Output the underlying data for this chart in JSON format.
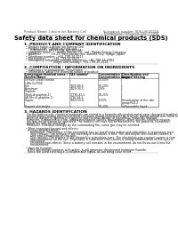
{
  "bg_color": "#ffffff",
  "header_left": "Product Name: Lithium Ion Battery Cell",
  "header_right_line1": "Substance number: SDS-LIB-00018",
  "header_right_line2": "Established / Revision: Dec.7.2016",
  "title": "Safety data sheet for chemical products (SDS)",
  "section1_title": "1. PRODUCT AND COMPANY IDENTIFICATION",
  "section1_lines": [
    "  • Product name: Lithium Ion Battery Cell",
    "  • Product code: Cylindrical-type cell",
    "       (UR18650U, UR18650A, UR18650A)",
    "  • Company name:      Sanyo Electric Co., Ltd., Mobile Energy Company",
    "  • Address:            20-21, Kamiyanagi-cho, Sumoto-City, Hyogo, Japan",
    "  • Telephone number:  +81-799-26-4111",
    "  • Fax number:        +81-799-26-4123",
    "  • Emergency telephone number (daytime): +81-799-26-2962",
    "                                 (Night and holiday): +81-799-26-2101"
  ],
  "section2_title": "2. COMPOSITION / INFORMATION ON INGREDIENTS",
  "section2_sub": "  • Substance or preparation: Preparation",
  "section2_sub2": "  • Information about the chemical nature of product:",
  "table_headers": [
    "Component chemical name /",
    "CAS number",
    "Concentration /",
    "Classification and"
  ],
  "table_headers2": [
    "Several Name",
    "",
    "Concentration range",
    "hazard labeling"
  ],
  "table_rows": [
    [
      "Lithium cobalt tentate",
      "-",
      "30-60%",
      ""
    ],
    [
      "(LiMn-Co-PO4)",
      "",
      "",
      ""
    ],
    [
      "Iron",
      "7439-89-6",
      "10-20%",
      "-"
    ],
    [
      "Aluminum",
      "7429-90-5",
      "2-6%",
      "-"
    ],
    [
      "Graphite",
      "",
      "",
      ""
    ],
    [
      "(Rock-A graphite-1)",
      "77782-42-5",
      "10-25%",
      "-"
    ],
    [
      "(Al-Mn-co graphite-1)",
      "7782-44-2",
      "",
      ""
    ],
    [
      "Copper",
      "7440-50-8",
      "5-15%",
      "Sensitization of the skin"
    ],
    [
      "",
      "",
      "",
      "group R43.2"
    ],
    [
      "Organic electrolyte",
      "-",
      "10-20%",
      "Inflammable liquid"
    ]
  ],
  "section3_title": "3. HAZARDS IDENTIFICATION",
  "section3_text": [
    "   For the battery cell, chemical materials are stored in a hermetically sealed metal case, designed to withstand",
    "   temperatures during electro-chemical reactions during normal use. As a result, during normal use, there is no",
    "   physical danger of ignition or explosion and thermal-danger of hazardous materials leakage.",
    "   However, if exposed to a fire, added mechanical shocks, decompress, when electric shock or misuse,",
    "   the gas inside cannot be operated. The battery cell case will be breached or fire-patterns, hazardous",
    "   materials may be released.",
    "   Moreover, if heated strongly by the surrounding fire, some gas may be emitted.",
    "",
    "  • Most important hazard and effects:",
    "    Human health effects:",
    "       Inhalation: The release of the electrolyte has an anesthesia action and stimulates is respiratory tract.",
    "       Skin contact: The release of the electrolyte stimulates a skin. The electrolyte skin contact causes a",
    "       sore and stimulation on the skin.",
    "       Eye contact: The release of the electrolyte stimulates eyes. The electrolyte eye contact causes a sore",
    "       and stimulation on the eye. Especially, a substance that causes a strong inflammation of the eyes is",
    "       contained.",
    "       Environmental effects: Since a battery cell remains in the environment, do not throw out it into the",
    "       environment.",
    "",
    "  • Specific hazards:",
    "    If the electrolyte contacts with water, it will generate detrimental hydrogen fluoride.",
    "    Since the used electrolyte is inflammable liquid, do not bring close to fire."
  ]
}
